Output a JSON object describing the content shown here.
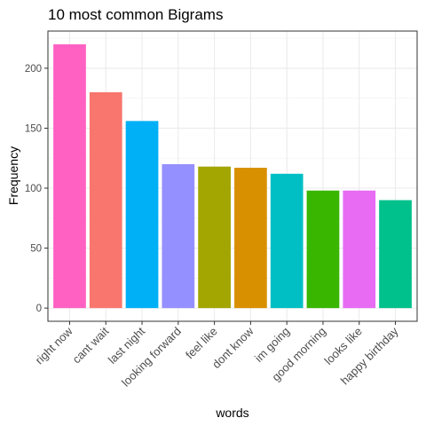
{
  "chart_data": {
    "type": "bar",
    "title": "10 most common Bigrams",
    "xlabel": "words",
    "ylabel": "Frequency",
    "categories": [
      "right now",
      "cant wait",
      "last night",
      "looking forward",
      "feel like",
      "dont know",
      "im going",
      "good morning",
      "looks like",
      "happy birthday"
    ],
    "values": [
      220,
      180,
      156,
      120,
      118,
      117,
      112,
      98,
      98,
      90
    ],
    "colors": [
      "#FF61C3",
      "#F8766D",
      "#00B0F6",
      "#9590FF",
      "#A3A500",
      "#D89000",
      "#00BFC4",
      "#39B600",
      "#E76BF3",
      "#00C08B"
    ],
    "yticks": [
      0,
      50,
      100,
      150,
      200
    ],
    "ylim": [
      -11,
      231
    ],
    "grid": true,
    "legend": "none"
  }
}
